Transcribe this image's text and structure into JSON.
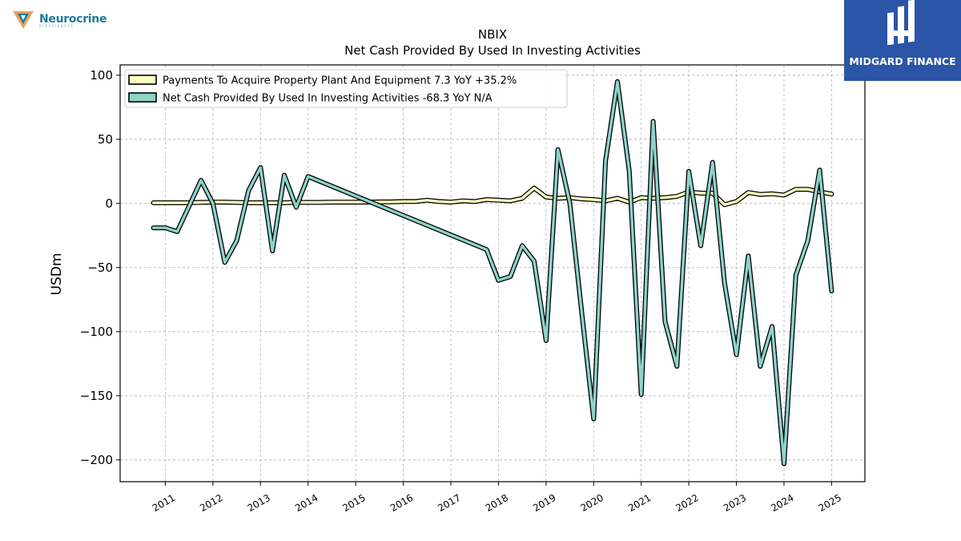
{
  "logos": {
    "left_name": "Neurocrine",
    "left_sub": "BIOSCIENCES",
    "right_name": "MIDGARD FINANCE"
  },
  "colors": {
    "series1_fill": "#ffffbf",
    "series2_fill": "#8dd3c7",
    "outline": "#000000",
    "grid": "#b0b0b0",
    "brand_blue": "#2b55a6"
  },
  "chart_data": {
    "type": "line",
    "title": "NBIX",
    "subtitle": "Net Cash Provided By Used In Investing Activities",
    "ylabel": "USDm",
    "xlabel": "",
    "ylim": [
      -217,
      108
    ],
    "xlim": [
      2010.05,
      2025.7
    ],
    "yticks": [
      100,
      50,
      0,
      -50,
      -100,
      -150,
      -200
    ],
    "ytick_labels": [
      "100",
      "50",
      "0",
      "−50",
      "−100",
      "−150",
      "−200"
    ],
    "xticks": [
      2011,
      2012,
      2013,
      2014,
      2015,
      2016,
      2017,
      2018,
      2019,
      2020,
      2021,
      2022,
      2023,
      2024,
      2025
    ],
    "grid": true,
    "legend_position": "top-left",
    "series": [
      {
        "name": "Payments To Acquire Property Plant And Equipment",
        "legend_label": "Payments To Acquire Property Plant And Equipment  7.3 YoY +35.2%",
        "color": "#ffffbf",
        "x": [
          2010.75,
          2011.0,
          2011.25,
          2011.5,
          2011.75,
          2012.0,
          2012.25,
          2012.5,
          2012.75,
          2013.0,
          2013.25,
          2013.5,
          2013.75,
          2014.0,
          2014.25,
          2014.5,
          2014.75,
          2015.0,
          2015.25,
          2015.5,
          2015.75,
          2016.0,
          2016.25,
          2016.5,
          2016.75,
          2017.0,
          2017.25,
          2017.5,
          2017.75,
          2018.0,
          2018.25,
          2018.5,
          2018.75,
          2019.0,
          2019.25,
          2019.5,
          2019.75,
          2020.0,
          2020.25,
          2020.5,
          2020.75,
          2021.0,
          2021.25,
          2021.5,
          2021.75,
          2022.0,
          2022.25,
          2022.5,
          2022.75,
          2023.0,
          2023.25,
          2023.5,
          2023.75,
          2024.0,
          2024.25,
          2024.5,
          2024.75,
          2025.0
        ],
        "values": [
          0.5,
          0.5,
          0.5,
          0.5,
          0.8,
          1.0,
          1.0,
          0.8,
          0.5,
          0.5,
          0.5,
          0.5,
          0.8,
          0.8,
          0.8,
          1.0,
          1.0,
          1.0,
          1.0,
          1.2,
          1.2,
          1.5,
          1.5,
          2.5,
          1.5,
          1.0,
          2.0,
          1.5,
          3.0,
          2.5,
          2.0,
          4.0,
          12.0,
          5.0,
          4.0,
          4.5,
          3.5,
          3.0,
          2.0,
          4.0,
          1.0,
          4.5,
          4.0,
          4.5,
          5.5,
          9.0,
          8.0,
          8.0,
          -1.0,
          1.5,
          8.5,
          7.0,
          7.5,
          6.5,
          11.0,
          11.0,
          9.0,
          7.3
        ]
      },
      {
        "name": "Net Cash Provided By Used In Investing Activities",
        "legend_label": "Net Cash Provided By Used In Investing Activities  -68.3 YoY N/A",
        "color": "#8dd3c7",
        "x": [
          2010.75,
          2011.0,
          2011.25,
          2011.5,
          2011.75,
          2012.0,
          2012.25,
          2012.5,
          2012.75,
          2013.0,
          2013.25,
          2013.5,
          2013.75,
          2014.0,
          2017.75,
          2018.0,
          2018.25,
          2018.5,
          2018.75,
          2019.0,
          2019.25,
          2019.5,
          2019.75,
          2020.0,
          2020.25,
          2020.5,
          2020.75,
          2021.0,
          2021.25,
          2021.5,
          2021.75,
          2022.0,
          2022.25,
          2022.5,
          2022.75,
          2023.0,
          2023.25,
          2023.5,
          2023.75,
          2024.0,
          2024.25,
          2024.5,
          2024.75,
          2025.0
        ],
        "values": [
          -19,
          -19,
          -22,
          -2,
          18,
          0,
          -46,
          -29,
          10,
          28,
          -37,
          22,
          -3,
          21,
          -36,
          -60,
          -57,
          -33,
          -45,
          -107,
          42,
          0,
          -85,
          -168,
          33,
          95,
          25,
          -149,
          64,
          -92,
          -127,
          25,
          -33,
          32,
          -62,
          -118,
          -41,
          -127,
          -96,
          -203,
          -56,
          -29,
          26,
          -68.3
        ]
      }
    ]
  }
}
